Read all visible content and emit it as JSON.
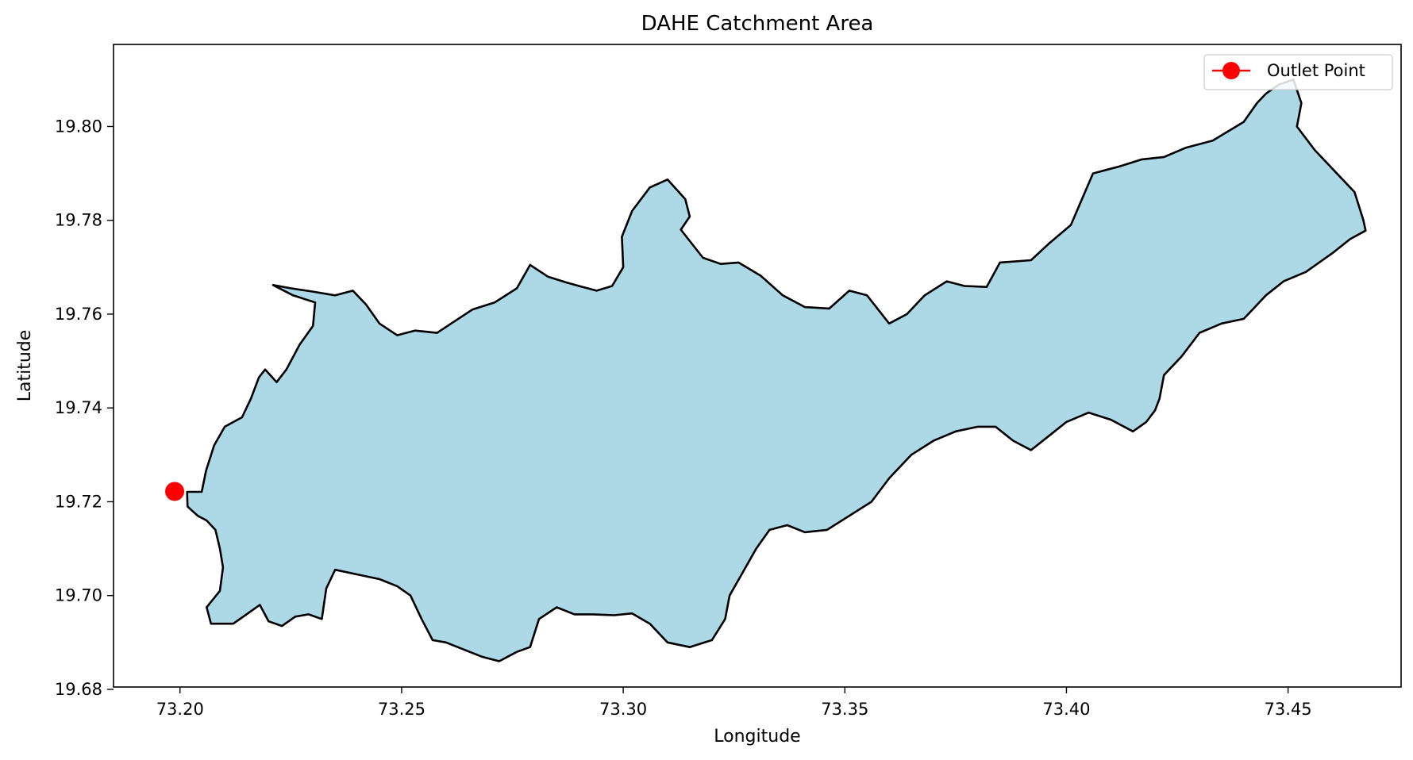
{
  "chart_data": {
    "type": "map",
    "title": "DAHE Catchment Area",
    "xlabel": "Longitude",
    "ylabel": "Latitude",
    "xlim": [
      73.185,
      73.4755
    ],
    "ylim": [
      19.6805,
      19.8175
    ],
    "x_ticks": [
      "73.20",
      "73.25",
      "73.30",
      "73.35",
      "73.40",
      "73.45"
    ],
    "y_ticks": [
      "19.68",
      "19.70",
      "19.72",
      "19.74",
      "19.76",
      "19.78",
      "19.80"
    ],
    "grid": false,
    "legend": {
      "position": "top-right",
      "entries": [
        "Outlet Point"
      ]
    },
    "catchment": {
      "name": "DAHE",
      "fill_color": "#add8e6",
      "edge_color": "#000000",
      "boundary": [
        [
          73.2016,
          19.7221
        ],
        [
          73.2049,
          19.7221
        ],
        [
          73.2059,
          19.7267
        ],
        [
          73.2077,
          19.732
        ],
        [
          73.2101,
          19.736
        ],
        [
          73.214,
          19.738
        ],
        [
          73.216,
          19.742
        ],
        [
          73.2178,
          19.7465
        ],
        [
          73.2192,
          19.7482
        ],
        [
          73.2218,
          19.7455
        ],
        [
          73.224,
          19.7482
        ],
        [
          73.227,
          19.7535
        ],
        [
          73.23,
          19.7575
        ],
        [
          73.2305,
          19.7625
        ],
        [
          73.2255,
          19.764
        ],
        [
          73.221,
          19.7662
        ],
        [
          73.225,
          19.7655
        ],
        [
          73.23,
          19.7648
        ],
        [
          73.235,
          19.764
        ],
        [
          73.239,
          19.765
        ],
        [
          73.242,
          19.762
        ],
        [
          73.245,
          19.758
        ],
        [
          73.249,
          19.7555
        ],
        [
          73.253,
          19.7565
        ],
        [
          73.258,
          19.756
        ],
        [
          73.262,
          19.7585
        ],
        [
          73.266,
          19.761
        ],
        [
          73.271,
          19.7625
        ],
        [
          73.276,
          19.7655
        ],
        [
          73.279,
          19.7705
        ],
        [
          73.283,
          19.768
        ],
        [
          73.287,
          19.7668
        ],
        [
          73.29,
          19.766
        ],
        [
          73.294,
          19.765
        ],
        [
          73.2975,
          19.766
        ],
        [
          73.3,
          19.77
        ],
        [
          73.2997,
          19.7765
        ],
        [
          73.302,
          19.782
        ],
        [
          73.306,
          19.787
        ],
        [
          73.31,
          19.7887
        ],
        [
          73.314,
          19.7845
        ],
        [
          73.315,
          19.7808
        ],
        [
          73.313,
          19.778
        ],
        [
          73.318,
          19.772
        ],
        [
          73.322,
          19.7707
        ],
        [
          73.326,
          19.771
        ],
        [
          73.331,
          19.7682
        ],
        [
          73.336,
          19.764
        ],
        [
          73.341,
          19.7615
        ],
        [
          73.3465,
          19.7612
        ],
        [
          73.351,
          19.765
        ],
        [
          73.355,
          19.764
        ],
        [
          73.36,
          19.758
        ],
        [
          73.364,
          19.76
        ],
        [
          73.368,
          19.764
        ],
        [
          73.373,
          19.767
        ],
        [
          73.377,
          19.766
        ],
        [
          73.382,
          19.7658
        ],
        [
          73.385,
          19.771
        ],
        [
          73.392,
          19.7715
        ],
        [
          73.396,
          19.775
        ],
        [
          73.401,
          19.779
        ],
        [
          73.406,
          19.79
        ],
        [
          73.412,
          19.7915
        ],
        [
          73.417,
          19.793
        ],
        [
          73.422,
          19.7935
        ],
        [
          73.427,
          19.7955
        ],
        [
          73.433,
          19.797
        ],
        [
          73.44,
          19.801
        ],
        [
          73.443,
          19.805
        ],
        [
          73.445,
          19.807
        ],
        [
          73.448,
          19.809
        ],
        [
          73.4512,
          19.81
        ],
        [
          73.453,
          19.805
        ],
        [
          73.452,
          19.8
        ],
        [
          73.456,
          19.795
        ],
        [
          73.46,
          19.791
        ],
        [
          73.465,
          19.786
        ],
        [
          73.467,
          19.78
        ],
        [
          73.4675,
          19.7778
        ],
        [
          73.464,
          19.776
        ],
        [
          73.46,
          19.773
        ],
        [
          73.454,
          19.769
        ],
        [
          73.449,
          19.767
        ],
        [
          73.445,
          19.764
        ],
        [
          73.442,
          19.761
        ],
        [
          73.44,
          19.759
        ],
        [
          73.435,
          19.758
        ],
        [
          73.43,
          19.756
        ],
        [
          73.426,
          19.751
        ],
        [
          73.422,
          19.747
        ],
        [
          73.421,
          19.742
        ],
        [
          73.42,
          19.7395
        ],
        [
          73.418,
          19.737
        ],
        [
          73.415,
          19.735
        ],
        [
          73.41,
          19.7375
        ],
        [
          73.405,
          19.739
        ],
        [
          73.4,
          19.737
        ],
        [
          73.396,
          19.734
        ],
        [
          73.392,
          19.731
        ],
        [
          73.388,
          19.733
        ],
        [
          73.384,
          19.736
        ],
        [
          73.38,
          19.736
        ],
        [
          73.375,
          19.735
        ],
        [
          73.37,
          19.733
        ],
        [
          73.365,
          19.73
        ],
        [
          73.36,
          19.725
        ],
        [
          73.356,
          19.72
        ],
        [
          73.351,
          19.717
        ],
        [
          73.346,
          19.714
        ],
        [
          73.341,
          19.7135
        ],
        [
          73.337,
          19.715
        ],
        [
          73.333,
          19.714
        ],
        [
          73.33,
          19.71
        ],
        [
          73.327,
          19.705
        ],
        [
          73.324,
          19.7
        ],
        [
          73.323,
          19.695
        ],
        [
          73.32,
          19.6905
        ],
        [
          73.315,
          19.689
        ],
        [
          73.31,
          19.69
        ],
        [
          73.306,
          19.694
        ],
        [
          73.302,
          19.6962
        ],
        [
          73.298,
          19.6958
        ],
        [
          73.293,
          19.696
        ],
        [
          73.289,
          19.696
        ],
        [
          73.285,
          19.6975
        ],
        [
          73.281,
          19.695
        ],
        [
          73.279,
          19.689
        ],
        [
          73.276,
          19.688
        ],
        [
          73.272,
          19.686
        ],
        [
          73.268,
          19.687
        ],
        [
          73.264,
          19.6885
        ],
        [
          73.26,
          19.69
        ],
        [
          73.257,
          19.6905
        ],
        [
          73.2545,
          19.695
        ],
        [
          73.252,
          19.7
        ],
        [
          73.249,
          19.702
        ],
        [
          73.245,
          19.7035
        ],
        [
          73.24,
          19.7045
        ],
        [
          73.235,
          19.7055
        ],
        [
          73.233,
          19.7015
        ],
        [
          73.232,
          19.695
        ],
        [
          73.229,
          19.696
        ],
        [
          73.226,
          19.6955
        ],
        [
          73.223,
          19.6935
        ],
        [
          73.22,
          19.6945
        ],
        [
          73.218,
          19.698
        ],
        [
          73.215,
          19.696
        ],
        [
          73.212,
          19.694
        ],
        [
          73.207,
          19.694
        ],
        [
          73.206,
          19.6975
        ],
        [
          73.209,
          19.701
        ],
        [
          73.2097,
          19.706
        ],
        [
          73.209,
          19.71
        ],
        [
          73.208,
          19.714
        ],
        [
          73.206,
          19.716
        ],
        [
          73.204,
          19.717
        ],
        [
          73.2017,
          19.719
        ],
        [
          73.2016,
          19.7221
        ]
      ]
    },
    "outlet_point": {
      "label": "Outlet Point",
      "lon": 73.1988,
      "lat": 19.7222,
      "color": "#ff0000"
    }
  }
}
